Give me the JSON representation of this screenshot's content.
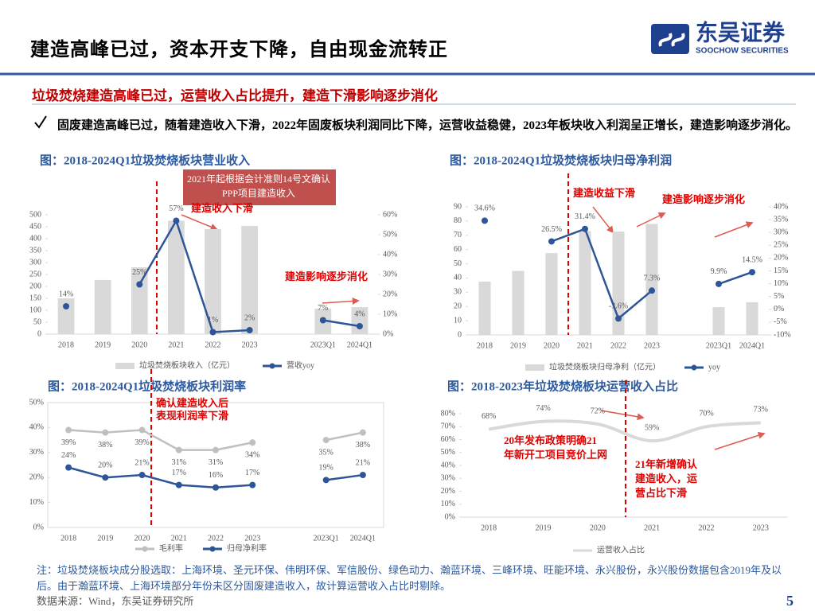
{
  "header": {
    "title": "建造高峰已过，资本开支下降，自由现金流转正",
    "logo_text": "东吴证券",
    "logo_subtext": "SOOCHOW SECURITIES"
  },
  "section": "垃圾焚烧建造高峰已过，运营收入占比提升，建造下滑影响逐步消化",
  "bullet": "固废建造高峰已过，随着建造收入下滑，2022年固废板块利润同比下降，运营收益稳健，2023年板块收入利润呈正增长，建造影响逐步消化。",
  "note": "注：垃圾焚烧板块成分股选取：上海环境、圣元环保、伟明环保、军信股份、绿色动力、瀚蓝环境、三峰环境、旺能环境、永兴股份，永兴股份数据包含2019年及以后。由于瀚蓝环境、上海环境部分年份未区分固废建造收入，故计算运营收入占比时剔除。",
  "source": "数据来源：Wind，东吴证券研究所",
  "page_number": "5",
  "chart_data": [
    {
      "type": "bar_line",
      "title": "图：2018-2024Q1垃圾焚烧板块营业收入",
      "categories": [
        "2018",
        "2019",
        "2020",
        "2021",
        "2022",
        "2023",
        null,
        "2023Q1",
        "2024Q1"
      ],
      "series": [
        {
          "name": "垃圾焚烧板块收入（亿元）",
          "type": "bar",
          "color": "#d9d9d9",
          "values": [
            150,
            227,
            280,
            475,
            440,
            453,
            null,
            107,
            113
          ]
        },
        {
          "name": "营收yoy",
          "type": "line",
          "axis": "y2",
          "color": "#2e5597",
          "marker": true,
          "values": [
            14,
            null,
            25,
            57,
            1,
            2,
            null,
            7,
            4
          ],
          "value_labels": [
            "14%",
            null,
            "25%",
            "57%",
            "1%",
            "2%",
            null,
            "7%",
            "4%"
          ]
        }
      ],
      "ylim": [
        0,
        500
      ],
      "yticks": [
        0,
        50,
        100,
        150,
        200,
        250,
        300,
        350,
        400,
        450,
        500
      ],
      "y2lim": [
        0,
        60
      ],
      "y2ticks": [
        {
          "value": 0,
          "label": "0%"
        },
        {
          "value": 10,
          "label": "10%"
        },
        {
          "value": 20,
          "label": "20%"
        },
        {
          "value": 30,
          "label": "30%"
        },
        {
          "value": 40,
          "label": "40%"
        },
        {
          "value": 50,
          "label": "50%"
        },
        {
          "value": 60,
          "label": "60%"
        }
      ],
      "annotations": [
        [
          "2021年起根据会计准则14号文确认",
          "PPP项目建造收入"
        ],
        [
          "建造收入下滑"
        ],
        [
          "建造影响逐步消化"
        ]
      ]
    },
    {
      "type": "bar_line",
      "title": "图：2018-2024Q1垃圾焚烧板块归母净利润",
      "categories": [
        "2018",
        "2019",
        "2020",
        "2021",
        "2022",
        "2023",
        null,
        "2023Q1",
        "2024Q1"
      ],
      "series": [
        {
          "name": "垃圾焚烧板块归母净利（亿元）",
          "type": "bar",
          "color": "#d9d9d9",
          "values": [
            37.5,
            45,
            57.5,
            73,
            72.6,
            78,
            null,
            19.5,
            23
          ]
        },
        {
          "name": "yoy",
          "type": "line",
          "axis": "y2",
          "color": "#2e5597",
          "marker": true,
          "values": [
            34.6,
            null,
            26.5,
            31.4,
            -3.6,
            7.3,
            null,
            9.9,
            14.5
          ],
          "value_labels": [
            "34.6%",
            null,
            "26.5%",
            "31.4%",
            "-3.6%",
            "7.3%",
            null,
            "9.9%",
            "14.5%"
          ]
        }
      ],
      "ylim": [
        0,
        90
      ],
      "yticks": [
        0,
        10,
        20,
        30,
        40,
        50,
        60,
        70,
        80,
        90
      ],
      "y2lim": [
        -10,
        40
      ],
      "y2ticks": [
        {
          "value": -10,
          "label": "-10%"
        },
        {
          "value": -5,
          "label": "-5%"
        },
        {
          "value": 0,
          "label": "0%"
        },
        {
          "value": 5,
          "label": "5%"
        },
        {
          "value": 10,
          "label": "10%"
        },
        {
          "value": 15,
          "label": "15%"
        },
        {
          "value": 20,
          "label": "20%"
        },
        {
          "value": 25,
          "label": "25%"
        },
        {
          "value": 30,
          "label": "30%"
        },
        {
          "value": 35,
          "label": "35%"
        },
        {
          "value": 40,
          "label": "40%"
        }
      ],
      "annotations": [
        [
          "建造收益下滑"
        ],
        [
          "建造影响逐步消化"
        ]
      ]
    },
    {
      "type": "line",
      "title": "图：2018-2024Q1垃圾焚烧板块利润率",
      "categories": [
        "2018",
        "2019",
        "2020",
        "2021",
        "2022",
        "2023",
        null,
        "2023Q1",
        "2024Q1"
      ],
      "series": [
        {
          "name": "毛利率",
          "type": "line",
          "color": "#bfbfbf",
          "marker": true,
          "values": [
            39,
            38,
            39,
            31,
            31,
            34,
            null,
            35,
            38
          ],
          "value_labels": [
            "39%",
            "38%",
            "39%",
            "31%",
            "31%",
            "34%",
            null,
            "35%",
            "38%"
          ]
        },
        {
          "name": "归母净利率",
          "type": "line",
          "color": "#2e5597",
          "marker": true,
          "values": [
            24,
            20,
            21,
            17,
            16,
            17,
            null,
            19,
            21
          ],
          "value_labels": [
            "24%",
            "20%",
            "21%",
            "17%",
            "16%",
            "17%",
            null,
            "19%",
            "21%"
          ]
        }
      ],
      "ylim": [
        0,
        50
      ],
      "yticks": [
        {
          "value": 0,
          "label": "0%"
        },
        {
          "value": 10,
          "label": "10%"
        },
        {
          "value": 20,
          "label": "20%"
        },
        {
          "value": 30,
          "label": "30%"
        },
        {
          "value": 40,
          "label": "40%"
        },
        {
          "value": 50,
          "label": "50%"
        }
      ],
      "annotations": [
        [
          "确认建造收入后",
          "表现利润率下滑"
        ]
      ]
    },
    {
      "type": "line",
      "title": "图：2018-2023年垃圾焚烧板块运营收入占比",
      "categories": [
        "2018",
        "2019",
        "2020",
        "2021",
        "2022",
        "2023"
      ],
      "series": [
        {
          "name": "运营收入占比",
          "type": "line",
          "color": "#d9d9d9",
          "smooth": true,
          "values": [
            68,
            74,
            72,
            59,
            70,
            73
          ],
          "value_labels": [
            "68%",
            "74%",
            "72%",
            "59%",
            "70%",
            "73%"
          ]
        }
      ],
      "ylim": [
        0,
        80
      ],
      "yticks": [
        {
          "value": 0,
          "label": "0%"
        },
        {
          "value": 10,
          "label": "10%"
        },
        {
          "value": 20,
          "label": "20%"
        },
        {
          "value": 30,
          "label": "30%"
        },
        {
          "value": 40,
          "label": "40%"
        },
        {
          "value": 50,
          "label": "50%"
        },
        {
          "value": 60,
          "label": "60%"
        },
        {
          "value": 70,
          "label": "70%"
        },
        {
          "value": 80,
          "label": "80%"
        }
      ],
      "annotations": [
        [
          "20年发布政策明确21",
          "年新开工项目竞价上网"
        ],
        [
          "21年新增确认",
          "建造收入，运",
          "营占比下滑"
        ]
      ]
    }
  ]
}
